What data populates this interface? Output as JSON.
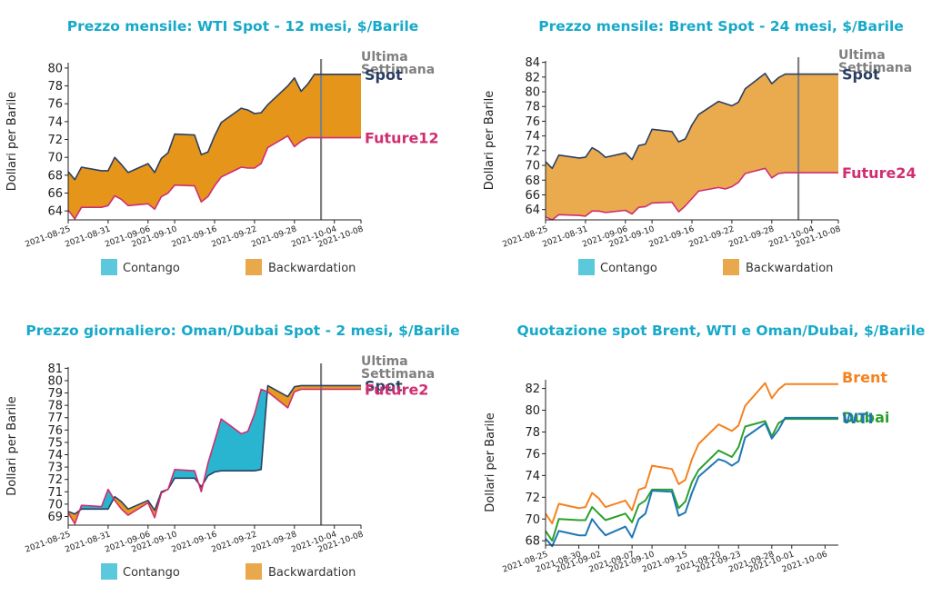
{
  "chart_data": [
    {
      "type": "area",
      "title": "Prezzo mensile: WTI Spot - 12 mesi, $/Barile",
      "ylabel": "Dollari per Barile",
      "ylim": [
        63.0,
        80.6
      ],
      "yticks": [
        64,
        66,
        68,
        70,
        72,
        74,
        76,
        78,
        80
      ],
      "x": [
        "2021-08-25",
        "2021-08-26",
        "2021-08-27",
        "2021-08-30",
        "2021-08-31",
        "2021-09-01",
        "2021-09-02",
        "2021-09-03",
        "2021-09-06",
        "2021-09-07",
        "2021-09-08",
        "2021-09-09",
        "2021-09-10",
        "2021-09-13",
        "2021-09-14",
        "2021-09-15",
        "2021-09-16",
        "2021-09-17",
        "2021-09-20",
        "2021-09-21",
        "2021-09-22",
        "2021-09-23",
        "2021-09-24",
        "2021-09-27",
        "2021-09-28",
        "2021-09-29",
        "2021-09-30",
        "2021-10-01",
        "2021-10-04",
        "2021-10-05",
        "2021-10-06",
        "2021-10-07",
        "2021-10-08"
      ],
      "xticks": [
        "2021-08-25",
        "2021-08-31",
        "2021-09-06",
        "2021-09-10",
        "2021-09-16",
        "2021-09-22",
        "2021-09-28",
        "2021-10-04",
        "2021-10-08"
      ],
      "series": [
        {
          "name": "Spot",
          "color": "#2b3f63",
          "values": [
            68.4,
            67.5,
            68.9,
            68.5,
            68.5,
            70.0,
            69.2,
            68.3,
            69.3,
            68.3,
            69.9,
            70.5,
            72.6,
            72.5,
            70.3,
            70.6,
            72.4,
            73.9,
            75.5,
            75.3,
            74.9,
            75.0,
            75.9,
            78.0,
            78.9,
            77.4,
            78.2,
            79.3,
            79.3,
            79.3,
            79.3,
            79.3,
            79.3
          ]
        },
        {
          "name": "Future12",
          "color": "#d02e72",
          "values": [
            64.1,
            63.1,
            64.4,
            64.4,
            64.6,
            65.7,
            65.3,
            64.6,
            64.8,
            64.2,
            65.6,
            66.0,
            66.9,
            66.8,
            65.0,
            65.6,
            66.8,
            67.8,
            68.9,
            68.8,
            68.8,
            69.3,
            71.1,
            72.4,
            71.2,
            71.8,
            72.2,
            72.2,
            72.2,
            72.2,
            72.2,
            72.2,
            72.2
          ]
        }
      ],
      "vline_at": "2021-10-02",
      "annotation": "Ultima Settimana",
      "legend": [
        "Contango",
        "Backwardation"
      ]
    },
    {
      "type": "area",
      "title": "Prezzo mensile: Brent Spot - 24 mesi, $/Barile",
      "ylabel": "Dollari per Barile",
      "ylim": [
        62.6,
        84.2
      ],
      "yticks": [
        64,
        66,
        68,
        70,
        72,
        74,
        76,
        78,
        80,
        82,
        84
      ],
      "x": [
        "2021-08-25",
        "2021-08-26",
        "2021-08-27",
        "2021-08-30",
        "2021-08-31",
        "2021-09-01",
        "2021-09-02",
        "2021-09-03",
        "2021-09-06",
        "2021-09-07",
        "2021-09-08",
        "2021-09-09",
        "2021-09-10",
        "2021-09-13",
        "2021-09-14",
        "2021-09-15",
        "2021-09-16",
        "2021-09-17",
        "2021-09-20",
        "2021-09-21",
        "2021-09-22",
        "2021-09-23",
        "2021-09-24",
        "2021-09-27",
        "2021-09-28",
        "2021-09-29",
        "2021-09-30",
        "2021-10-01",
        "2021-10-04",
        "2021-10-05",
        "2021-10-06",
        "2021-10-07",
        "2021-10-08"
      ],
      "xticks": [
        "2021-08-25",
        "2021-08-31",
        "2021-09-06",
        "2021-09-10",
        "2021-09-16",
        "2021-09-22",
        "2021-09-28",
        "2021-10-04",
        "2021-10-08"
      ],
      "series": [
        {
          "name": "Spot",
          "color": "#2b3f63",
          "values": [
            70.5,
            69.6,
            71.4,
            71.0,
            71.1,
            72.4,
            71.9,
            71.1,
            71.7,
            70.8,
            72.7,
            72.9,
            74.9,
            74.6,
            73.2,
            73.6,
            75.5,
            76.9,
            78.7,
            78.4,
            78.1,
            78.6,
            80.4,
            82.5,
            81.1,
            81.9,
            82.4,
            82.4,
            82.4,
            82.4,
            82.4,
            82.4,
            82.4
          ]
        },
        {
          "name": "Future24",
          "color": "#d02e72",
          "values": [
            63.0,
            62.6,
            63.3,
            63.2,
            63.1,
            63.8,
            63.8,
            63.6,
            63.9,
            63.4,
            64.3,
            64.4,
            64.9,
            65.0,
            63.7,
            64.5,
            65.5,
            66.5,
            67.0,
            66.8,
            67.1,
            67.7,
            68.9,
            69.6,
            68.3,
            68.9,
            69.0,
            69.0,
            69.0,
            69.0,
            69.0,
            69.0,
            69.0
          ]
        }
      ],
      "vline_at": "2021-10-02",
      "annotation": "Ultima Settimana",
      "legend": [
        "Contango",
        "Backwardation"
      ]
    },
    {
      "type": "area",
      "title": "Prezzo giornaliero: Oman/Dubai Spot - 2 mesi, $/Barile",
      "ylabel": "Dollari per Barile",
      "ylim": [
        68.3,
        81.1
      ],
      "yticks": [
        69,
        70,
        71,
        72,
        73,
        74,
        75,
        76,
        77,
        78,
        79,
        80,
        81
      ],
      "x": [
        "2021-08-25",
        "2021-08-26",
        "2021-08-27",
        "2021-08-30",
        "2021-08-31",
        "2021-09-01",
        "2021-09-02",
        "2021-09-03",
        "2021-09-06",
        "2021-09-07",
        "2021-09-08",
        "2021-09-09",
        "2021-09-10",
        "2021-09-13",
        "2021-09-14",
        "2021-09-15",
        "2021-09-16",
        "2021-09-17",
        "2021-09-20",
        "2021-09-21",
        "2021-09-22",
        "2021-09-23",
        "2021-09-24",
        "2021-09-27",
        "2021-09-28",
        "2021-09-29",
        "2021-09-30",
        "2021-10-01",
        "2021-10-04",
        "2021-10-05",
        "2021-10-06",
        "2021-10-07",
        "2021-10-08"
      ],
      "xticks": [
        "2021-08-25",
        "2021-08-31",
        "2021-09-06",
        "2021-09-10",
        "2021-09-16",
        "2021-09-22",
        "2021-09-28",
        "2021-10-04",
        "2021-10-08"
      ],
      "series": [
        {
          "name": "Spot",
          "color": "#2b3f63",
          "values": [
            69.4,
            69.2,
            69.6,
            69.6,
            69.6,
            70.6,
            70.2,
            69.6,
            70.3,
            69.5,
            71.0,
            71.2,
            72.1,
            72.1,
            71.4,
            72.3,
            72.6,
            72.7,
            72.7,
            72.7,
            72.7,
            72.8,
            79.6,
            78.7,
            79.5,
            79.6,
            79.6,
            79.6,
            79.6,
            79.6,
            79.6,
            79.6,
            79.6
          ]
        },
        {
          "name": "Future2",
          "color": "#d02e72",
          "values": [
            69.3,
            68.4,
            69.9,
            69.8,
            71.2,
            70.3,
            69.6,
            69.1,
            70.1,
            68.9,
            70.9,
            71.2,
            72.8,
            72.7,
            71.0,
            73.3,
            75.1,
            76.9,
            75.7,
            75.9,
            77.3,
            79.3,
            79.1,
            77.8,
            79.1,
            79.3,
            79.3,
            79.3,
            79.3,
            79.3,
            79.3,
            79.3,
            79.3
          ]
        }
      ],
      "vline_at": "2021-10-02",
      "annotation": "Ultima Settimana",
      "legend": [
        "Contango",
        "Backwardation"
      ]
    },
    {
      "type": "line",
      "title": "Quotazione spot Brent, WTI e Oman/Dubai, $/Barile",
      "ylabel": "Dollari per Barile",
      "ylim": [
        67.6,
        82.8
      ],
      "yticks": [
        68,
        70,
        72,
        74,
        76,
        78,
        80,
        82
      ],
      "x": [
        "2021-08-25",
        "2021-08-26",
        "2021-08-27",
        "2021-08-30",
        "2021-08-31",
        "2021-09-01",
        "2021-09-02",
        "2021-09-03",
        "2021-09-06",
        "2021-09-07",
        "2021-09-08",
        "2021-09-09",
        "2021-09-10",
        "2021-09-13",
        "2021-09-14",
        "2021-09-15",
        "2021-09-16",
        "2021-09-17",
        "2021-09-20",
        "2021-09-21",
        "2021-09-22",
        "2021-09-23",
        "2021-09-24",
        "2021-09-27",
        "2021-09-28",
        "2021-09-29",
        "2021-09-30",
        "2021-10-01",
        "2021-10-04",
        "2021-10-05",
        "2021-10-06",
        "2021-10-07",
        "2021-10-08"
      ],
      "xticks": [
        "2021-08-25",
        "2021-08-30",
        "2021-09-02",
        "2021-09-07",
        "2021-09-10",
        "2021-09-15",
        "2021-09-20",
        "2021-09-23",
        "2021-09-28",
        "2021-10-01",
        "2021-10-06"
      ],
      "series": [
        {
          "name": "Brent",
          "color": "#f58220",
          "values": [
            70.5,
            69.6,
            71.4,
            71.0,
            71.1,
            72.4,
            71.9,
            71.1,
            71.7,
            70.8,
            72.7,
            72.9,
            74.9,
            74.6,
            73.2,
            73.6,
            75.5,
            76.9,
            78.7,
            78.4,
            78.1,
            78.6,
            80.4,
            82.5,
            81.1,
            81.9,
            82.4,
            82.4,
            82.4,
            82.4,
            82.4,
            82.4,
            82.4
          ]
        },
        {
          "name": "Dubai",
          "color": "#2ca02c",
          "values": [
            68.9,
            68.0,
            70.0,
            69.9,
            69.9,
            71.1,
            70.5,
            69.9,
            70.5,
            69.7,
            71.3,
            71.7,
            72.7,
            72.7,
            71.0,
            71.6,
            73.4,
            74.5,
            76.3,
            76.0,
            75.7,
            76.6,
            78.5,
            79.0,
            77.6,
            78.8,
            79.2,
            79.2,
            79.2,
            79.2,
            79.2,
            79.2,
            79.2
          ]
        },
        {
          "name": "WTI",
          "color": "#1f77b4",
          "values": [
            68.2,
            67.5,
            68.9,
            68.5,
            68.5,
            70.0,
            69.2,
            68.5,
            69.3,
            68.3,
            70.0,
            70.5,
            72.6,
            72.5,
            70.3,
            70.6,
            72.4,
            73.9,
            75.5,
            75.3,
            74.9,
            75.3,
            77.5,
            78.8,
            77.4,
            78.2,
            79.3,
            79.3,
            79.3,
            79.3,
            79.3,
            79.3,
            79.3
          ]
        }
      ]
    }
  ],
  "legend_colors": {
    "contango": "#5bc8dc",
    "backwardation": "#e8a84b"
  },
  "fill_colors": {
    "wti": "#e4951a",
    "brent": "#eaaa4e",
    "oman_up": "#29b5d0",
    "oman_down": "#e49a20"
  }
}
